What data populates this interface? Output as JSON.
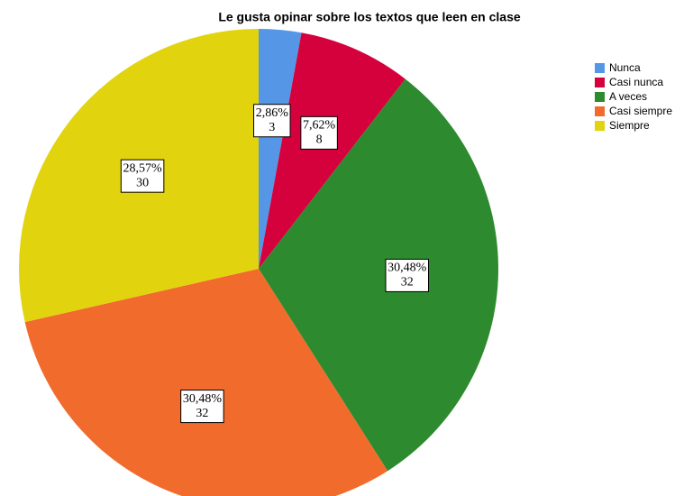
{
  "chart_data": {
    "type": "pie",
    "title": "Le gusta opinar sobre los textos que leen en clase",
    "categories": [
      "Nunca",
      "Casi nunca",
      "A veces",
      "Casi siempre",
      "Siempre"
    ],
    "values": [
      2.86,
      7.62,
      30.48,
      30.48,
      28.57
    ],
    "value_labels": [
      "2,86%",
      "7,62%",
      "30,48%",
      "30,48%",
      "28,57%"
    ],
    "counts": [
      3,
      8,
      32,
      32,
      30
    ],
    "colors": [
      "#5596e6",
      "#d5013c",
      "#2e8a2e",
      "#f16b2c",
      "#e1d40e"
    ],
    "legend": "right"
  }
}
